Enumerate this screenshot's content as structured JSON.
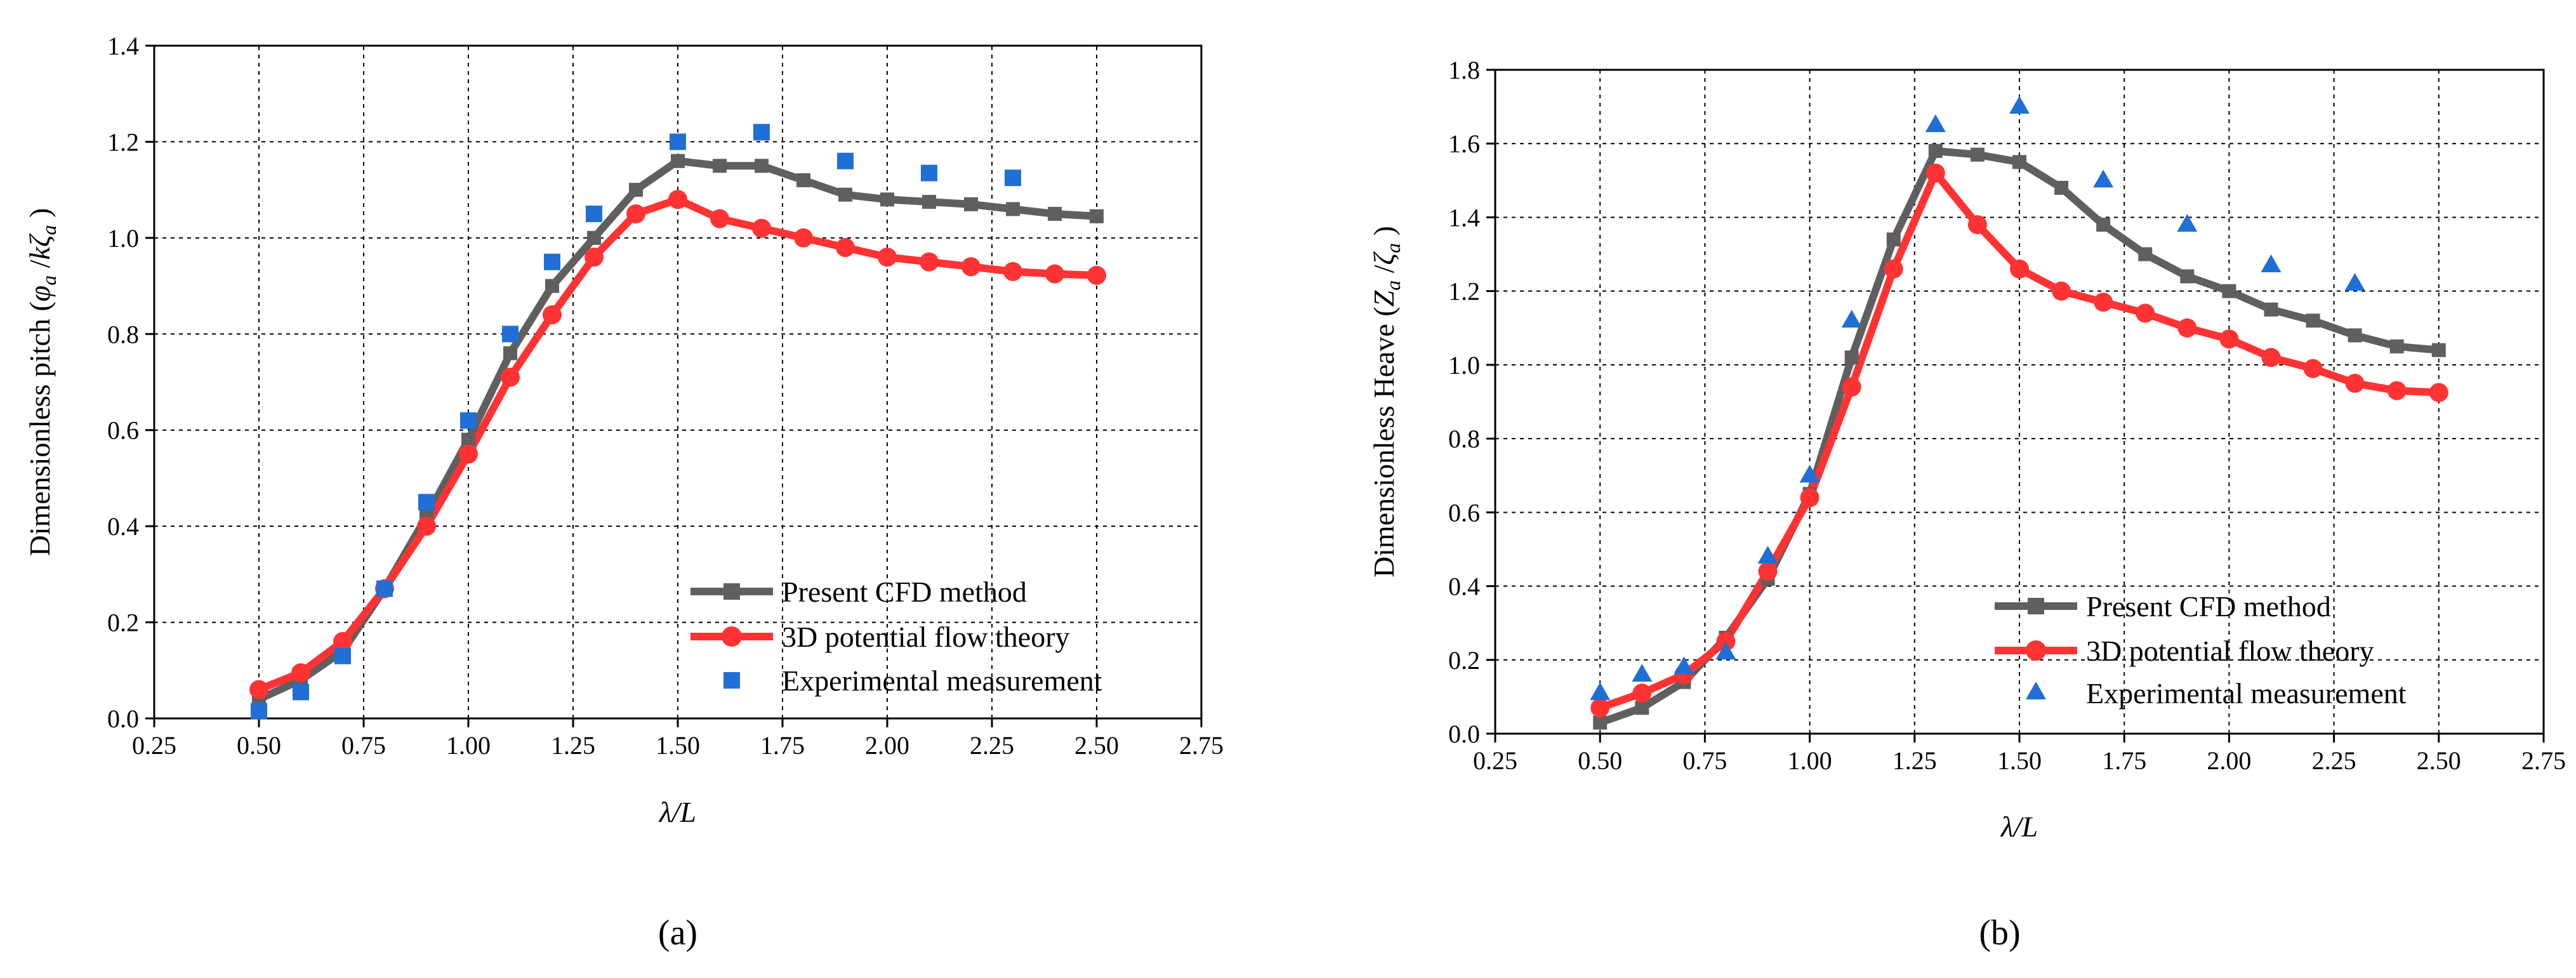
{
  "colors": {
    "cfd": "#5f5f5f",
    "potential": "#ff3333",
    "experiment": "#1f6fd6"
  },
  "panels": [
    {
      "label": "(a)"
    },
    {
      "label": "(b)"
    }
  ],
  "chart_data": [
    {
      "type": "line",
      "title": "",
      "xlabel": "λ/L",
      "ylabel": "Dimensionless pitch (φa /kζa )",
      "xlim": [
        0.25,
        2.75
      ],
      "ylim": [
        0.0,
        1.4
      ],
      "xticks": [
        "0.25",
        "0.50",
        "0.75",
        "1.00",
        "1.25",
        "1.50",
        "1.75",
        "2.00",
        "2.25",
        "2.50",
        "2.75"
      ],
      "yticks": [
        "0.0",
        "0.2",
        "0.4",
        "0.6",
        "0.8",
        "1.0",
        "1.2",
        "1.4"
      ],
      "grid": true,
      "legend_position": "bottom-right",
      "series": [
        {
          "name": "Present CFD method",
          "marker": "square",
          "style": "line",
          "x": [
            0.5,
            0.6,
            0.7,
            0.8,
            0.9,
            1.0,
            1.1,
            1.2,
            1.3,
            1.4,
            1.5,
            1.6,
            1.7,
            1.8,
            1.9,
            2.0,
            2.1,
            2.2,
            2.3,
            2.4,
            2.5
          ],
          "values": [
            0.04,
            0.08,
            0.14,
            0.27,
            0.42,
            0.58,
            0.76,
            0.9,
            1.0,
            1.1,
            1.16,
            1.15,
            1.15,
            1.12,
            1.09,
            1.08,
            1.075,
            1.07,
            1.06,
            1.05,
            1.045
          ]
        },
        {
          "name": "3D potential flow theory",
          "marker": "circle",
          "style": "line",
          "x": [
            0.5,
            0.6,
            0.7,
            0.8,
            0.9,
            1.0,
            1.1,
            1.2,
            1.3,
            1.4,
            1.5,
            1.6,
            1.7,
            1.8,
            1.9,
            2.0,
            2.1,
            2.2,
            2.3,
            2.4,
            2.5
          ],
          "values": [
            0.06,
            0.095,
            0.16,
            0.27,
            0.4,
            0.55,
            0.71,
            0.84,
            0.96,
            1.05,
            1.08,
            1.04,
            1.02,
            1.0,
            0.98,
            0.96,
            0.95,
            0.94,
            0.93,
            0.925,
            0.922
          ]
        },
        {
          "name": "Experimental measurement",
          "marker": "square",
          "style": "scatter",
          "x": [
            0.5,
            0.6,
            0.7,
            0.8,
            0.9,
            1.0,
            1.1,
            1.2,
            1.3,
            1.5,
            1.7,
            1.9,
            2.1,
            2.3
          ],
          "values": [
            0.015,
            0.055,
            0.13,
            0.27,
            0.45,
            0.62,
            0.8,
            0.95,
            1.05,
            1.2,
            1.22,
            1.16,
            1.135,
            1.125
          ]
        }
      ]
    },
    {
      "type": "line",
      "title": "",
      "xlabel": "λ/L",
      "ylabel": "Dimensionless Heave (Za /ζa )",
      "xlim": [
        0.25,
        2.75
      ],
      "ylim": [
        0.0,
        1.8
      ],
      "xticks": [
        "0.25",
        "0.50",
        "0.75",
        "1.00",
        "1.25",
        "1.50",
        "1.75",
        "2.00",
        "2.25",
        "2.50",
        "2.75"
      ],
      "yticks": [
        "0.0",
        "0.2",
        "0.4",
        "0.6",
        "0.8",
        "1.0",
        "1.2",
        "1.4",
        "1.6",
        "1.8"
      ],
      "grid": true,
      "legend_position": "bottom-right",
      "series": [
        {
          "name": "Present CFD method",
          "marker": "square",
          "style": "line",
          "x": [
            0.5,
            0.6,
            0.7,
            0.8,
            0.9,
            1.0,
            1.1,
            1.2,
            1.3,
            1.4,
            1.5,
            1.6,
            1.7,
            1.8,
            1.9,
            2.0,
            2.1,
            2.2,
            2.3,
            2.4,
            2.5
          ],
          "values": [
            0.03,
            0.07,
            0.14,
            0.26,
            0.42,
            0.65,
            1.02,
            1.34,
            1.58,
            1.57,
            1.55,
            1.48,
            1.38,
            1.3,
            1.24,
            1.2,
            1.15,
            1.12,
            1.08,
            1.05,
            1.04
          ]
        },
        {
          "name": "3D potential flow theory",
          "marker": "circle",
          "style": "line",
          "x": [
            0.5,
            0.6,
            0.7,
            0.8,
            0.9,
            1.0,
            1.1,
            1.2,
            1.3,
            1.4,
            1.5,
            1.6,
            1.7,
            1.8,
            1.9,
            2.0,
            2.1,
            2.2,
            2.3,
            2.4,
            2.5
          ],
          "values": [
            0.07,
            0.11,
            0.16,
            0.25,
            0.44,
            0.64,
            0.94,
            1.26,
            1.52,
            1.38,
            1.26,
            1.2,
            1.17,
            1.14,
            1.1,
            1.07,
            1.02,
            0.99,
            0.95,
            0.93,
            0.925
          ]
        },
        {
          "name": "Experimental measurement",
          "marker": "triangle",
          "style": "scatter",
          "x": [
            0.5,
            0.6,
            0.7,
            0.8,
            0.9,
            1.0,
            1.1,
            1.3,
            1.5,
            1.7,
            1.9,
            2.1,
            2.3
          ],
          "values": [
            0.11,
            0.16,
            0.18,
            0.22,
            0.48,
            0.7,
            1.12,
            1.65,
            1.7,
            1.5,
            1.38,
            1.27,
            1.22
          ]
        }
      ]
    }
  ]
}
